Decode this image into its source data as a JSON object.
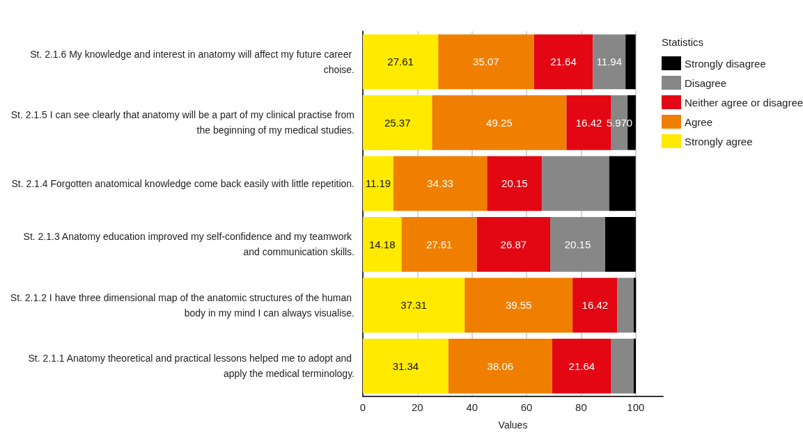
{
  "chart_data": {
    "type": "bar",
    "orientation": "horizontal",
    "stacked": true,
    "xlabel": "Values",
    "legend_title": "Statistics",
    "legend": "right",
    "grid": "x",
    "categories": [
      "St. 2.1.6 My knowledge and interest in anatomy will affect my future career choise.",
      "St. 2.1.5 I can see clearly that anatomy will be a part of my clinical practise from the beginning of my medical studies.",
      "St. 2.1.4 Forgotten anatomical knowledge come back easily with little repetition.",
      "St. 2.1.3 Anatomy education improved my self-confidence and my teamwork and communication skills.",
      "St. 2.1.2 I have three dimensional map of the anatomic structures of the human body in my mind I can always visualise.",
      "St. 2.1.1 Anatomy theoretical and practical lessons helped me to adopt and apply the medical terminology."
    ],
    "xlim": [
      0,
      110
    ],
    "xticks": [
      0,
      20,
      40,
      60,
      80,
      100
    ],
    "series": [
      {
        "name": "Strongly agree",
        "color": "#ffea00",
        "values": [
          27.61,
          25.37,
          11.19,
          14.18,
          37.31,
          31.34
        ],
        "value_labels": [
          "27.61",
          "25.37",
          "11.19",
          "14.18",
          "37.31",
          "31.34"
        ]
      },
      {
        "name": "Agree",
        "color": "#f07f00",
        "values": [
          35.07,
          49.25,
          34.33,
          27.61,
          39.55,
          38.06
        ],
        "value_labels": [
          "35.07",
          "49.25",
          "34.33",
          "27.61",
          "39.55",
          "38.06"
        ]
      },
      {
        "name": "Neither agree or disagree",
        "color": "#e30613",
        "values": [
          21.64,
          16.42,
          20.15,
          26.87,
          16.42,
          21.64
        ],
        "value_labels": [
          "21.64",
          "16.42",
          "20.15",
          "26.87",
          "16.42",
          "21.64"
        ]
      },
      {
        "name": "Disagree",
        "color": "#878787",
        "values": [
          11.94,
          5.97,
          24.6,
          20.15,
          6,
          8.2
        ],
        "value_labels": [
          "11.94",
          "5.970",
          null,
          "20.15",
          null,
          null
        ]
      },
      {
        "name": "Strongly disagree",
        "color": "#000000",
        "values": [
          3.7,
          3,
          9.7,
          11.2,
          0.8,
          0.8
        ],
        "value_labels": [
          null,
          null,
          null,
          null,
          null,
          null
        ]
      }
    ]
  }
}
